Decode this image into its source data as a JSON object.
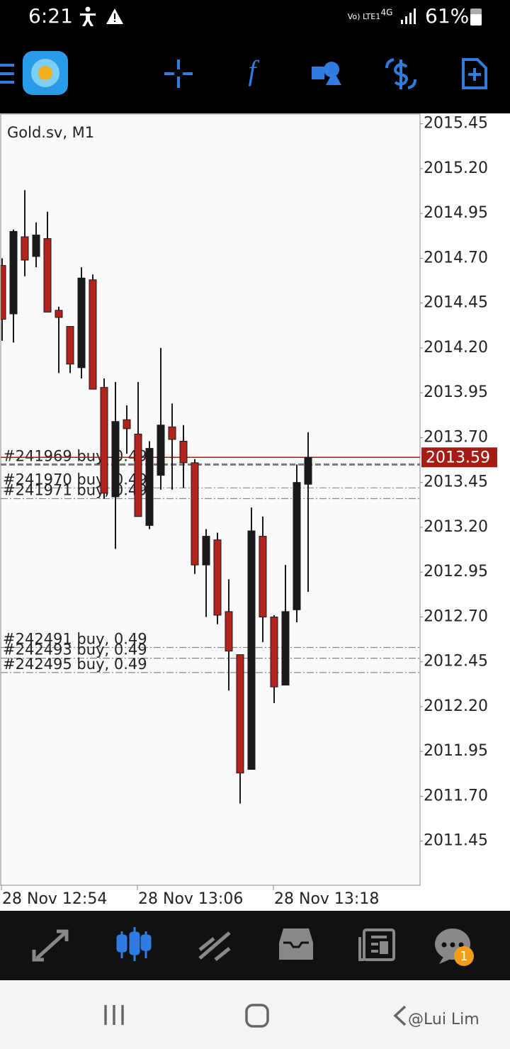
{
  "status_bar": {
    "time": "6:21",
    "network": "Vo) LTE1",
    "signal": "4G",
    "battery": "61%"
  },
  "watermark": "@Lui Lim",
  "notification_badge": "1",
  "chart_data": {
    "type": "candlestick",
    "title": "Gold.sv, M1",
    "categories": [
      "28 Nov 12:54",
      null,
      null,
      null,
      null,
      null,
      null,
      null,
      null,
      null,
      null,
      null,
      "28 Nov 13:06",
      null,
      null,
      null,
      null,
      null,
      null,
      null,
      null,
      null,
      null,
      null,
      "28 Nov 13:18",
      null,
      null,
      null
    ],
    "open": [
      2014.66,
      2014.39,
      2014.82,
      2014.71,
      2014.81,
      2014.41,
      2014.32,
      2014.09,
      2014.58,
      2013.98,
      2013.37,
      2013.8,
      2013.72,
      2013.21,
      2013.49,
      2013.76,
      2013.68,
      2013.56,
      2012.99,
      2013.13,
      2012.73,
      2012.49,
      2011.85,
      2013.15,
      2012.7,
      2012.32,
      2012.74,
      2013.44
    ],
    "high": [
      2014.7,
      2014.86,
      2015.08,
      2014.9,
      2014.96,
      2014.43,
      2014.32,
      2014.65,
      2014.61,
      2014.03,
      2014.01,
      2013.88,
      2014.01,
      2013.68,
      2014.2,
      2013.89,
      2013.77,
      2013.58,
      2013.19,
      2013.17,
      2012.91,
      2012.49,
      2013.31,
      2013.26,
      2012.71,
      2012.99,
      2013.55,
      2013.73
    ],
    "low": [
      2014.24,
      2014.23,
      2014.6,
      2014.65,
      2014.4,
      2014.06,
      2014.06,
      2014.03,
      2013.97,
      2013.36,
      2013.08,
      2013.61,
      2013.26,
      2013.19,
      2013.41,
      2013.41,
      2013.42,
      2012.94,
      2012.7,
      2012.66,
      2012.29,
      2011.66,
      2011.85,
      2012.56,
      2012.22,
      2012.32,
      2012.67,
      2012.84
    ],
    "close": [
      2014.36,
      2014.85,
      2014.69,
      2014.83,
      2014.4,
      2014.37,
      2014.11,
      2014.59,
      2013.97,
      2013.39,
      2013.79,
      2013.75,
      2013.26,
      2013.64,
      2013.77,
      2013.69,
      2013.56,
      2012.99,
      2013.15,
      2012.71,
      2012.51,
      2011.83,
      2013.18,
      2012.7,
      2012.31,
      2012.73,
      2013.45,
      2013.59
    ],
    "up_color": "#1a1a1a",
    "down_color": "#b3231a",
    "ylim": [
      2011.2,
      2015.5
    ],
    "yticks": [
      2015.45,
      {
        "value": 2015.2,
        "label": "2015.20"
      },
      2014.95,
      {
        "value": 2014.7,
        "label": "2014.70"
      },
      2014.45,
      {
        "value": 2014.2,
        "label": "2014.20"
      },
      2013.95,
      {
        "value": 2013.7,
        "label": "2013.70"
      },
      2013.45,
      {
        "value": 2013.2,
        "label": "2013.20"
      },
      2012.95,
      {
        "value": 2012.7,
        "label": "2012.70"
      },
      2012.45,
      {
        "value": 2012.2,
        "label": "2012.20"
      },
      2011.95,
      {
        "value": 2011.7,
        "label": "2011.70"
      },
      2011.45
    ],
    "current_price": 2013.59,
    "current_price_color": "#a31d14",
    "order_lines": [
      {
        "label": "#241969 buy, 0.49",
        "value": 2013.55
      },
      {
        "label": "#241970 buy, 0.49",
        "value": 2013.42
      },
      {
        "label": "#241971 buy, 0.49",
        "value": 2013.36
      },
      {
        "label": "#242491 buy, 0.49",
        "value": 2012.53
      },
      {
        "label": "#242493 buy, 0.49",
        "value": 2012.47
      },
      {
        "label": "#242495 buy, 0.49",
        "value": 2012.39
      }
    ]
  }
}
